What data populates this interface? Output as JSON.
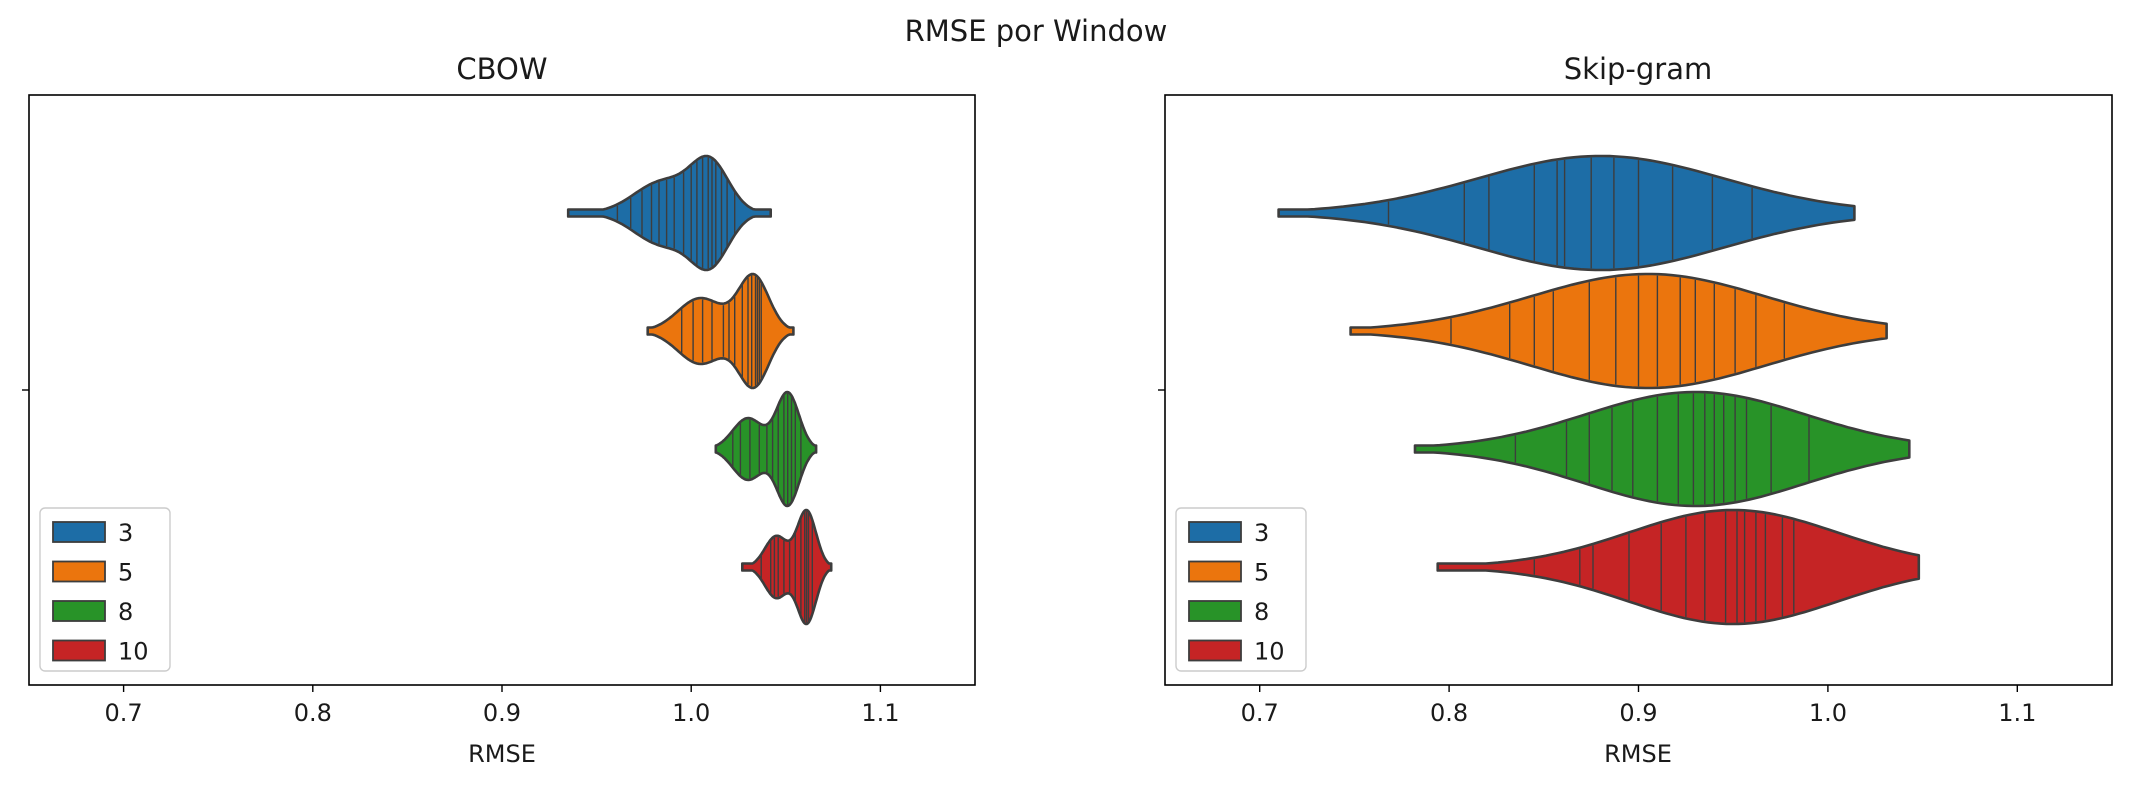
{
  "chart_data": {
    "type": "violin",
    "suptitle": "RMSE por Window",
    "legend_title": "",
    "series": [
      {
        "name": "3",
        "color": "#1f77b4"
      },
      {
        "name": "5",
        "color": "#ff7f0e"
      },
      {
        "name": "8",
        "color": "#2ca02c"
      },
      {
        "name": "10",
        "color": "#d62728"
      }
    ],
    "panels": [
      {
        "title": "CBOW",
        "xlabel": "RMSE",
        "xlim": [
          0.65,
          1.15
        ],
        "xticks": [
          "0.7",
          "0.8",
          "0.9",
          "1.0",
          "1.1"
        ],
        "legend_loc": "lower-left",
        "violins": [
          {
            "name": "3",
            "min": 0.935,
            "max": 1.042,
            "peaks": [
              [
                0.985,
                0.015,
                0.65
              ],
              [
                1.01,
                0.01,
                1.0
              ]
            ],
            "points": [
              0.961,
              0.968,
              0.974,
              0.979,
              0.983,
              0.987,
              0.991,
              0.996,
              1.0,
              1.003,
              1.006,
              1.009,
              1.011,
              1.013,
              1.016,
              1.019,
              1.023
            ]
          },
          {
            "name": "5",
            "min": 0.977,
            "max": 1.054,
            "peaks": [
              [
                1.005,
                0.012,
                0.6
              ],
              [
                1.033,
                0.008,
                1.0
              ]
            ],
            "points": [
              0.995,
              1.001,
              1.006,
              1.011,
              1.017,
              1.02,
              1.023,
              1.027,
              1.03,
              1.032,
              1.034,
              1.035,
              1.036,
              1.037
            ]
          },
          {
            "name": "8",
            "min": 1.013,
            "max": 1.066,
            "peaks": [
              [
                1.03,
                0.008,
                0.55
              ],
              [
                1.051,
                0.006,
                1.0
              ]
            ],
            "points": [
              1.022,
              1.026,
              1.031,
              1.036,
              1.04,
              1.043,
              1.046,
              1.049,
              1.051,
              1.053,
              1.055,
              1.058
            ]
          },
          {
            "name": "10",
            "min": 1.027,
            "max": 1.074,
            "peaks": [
              [
                1.045,
                0.006,
                0.55
              ],
              [
                1.061,
                0.005,
                1.0
              ]
            ],
            "points": [
              1.037,
              1.042,
              1.044,
              1.046,
              1.049,
              1.052,
              1.055,
              1.058,
              1.06,
              1.061,
              1.062,
              1.064
            ]
          }
        ]
      },
      {
        "title": "Skip-gram",
        "xlabel": "RMSE",
        "xlim": [
          0.65,
          1.15
        ],
        "xticks": [
          "0.7",
          "0.8",
          "0.9",
          "1.0",
          "1.1"
        ],
        "legend_loc": "lower-left",
        "violins": [
          {
            "name": "3",
            "min": 0.71,
            "max": 1.014,
            "peaks": [
              [
                0.88,
                0.065,
                1.0
              ]
            ],
            "points": [
              0.768,
              0.808,
              0.821,
              0.845,
              0.857,
              0.861,
              0.875,
              0.887,
              0.9,
              0.918,
              0.939,
              0.96
            ]
          },
          {
            "name": "5",
            "min": 0.748,
            "max": 1.031,
            "peaks": [
              [
                0.905,
                0.062,
                1.0
              ]
            ],
            "points": [
              0.801,
              0.832,
              0.845,
              0.855,
              0.874,
              0.888,
              0.9,
              0.91,
              0.922,
              0.93,
              0.94,
              0.951,
              0.962,
              0.977
            ]
          },
          {
            "name": "8",
            "min": 0.782,
            "max": 1.043,
            "peaks": [
              [
                0.93,
                0.058,
                1.0
              ]
            ],
            "points": [
              0.835,
              0.862,
              0.874,
              0.886,
              0.897,
              0.91,
              0.921,
              0.929,
              0.935,
              0.94,
              0.945,
              0.951,
              0.957,
              0.97,
              0.99
            ]
          },
          {
            "name": "10",
            "min": 0.794,
            "max": 1.048,
            "peaks": [
              [
                0.95,
                0.055,
                1.0
              ]
            ],
            "points": [
              0.845,
              0.869,
              0.876,
              0.895,
              0.912,
              0.925,
              0.935,
              0.946,
              0.952,
              0.956,
              0.962,
              0.967,
              0.976,
              0.982
            ]
          }
        ]
      }
    ]
  }
}
